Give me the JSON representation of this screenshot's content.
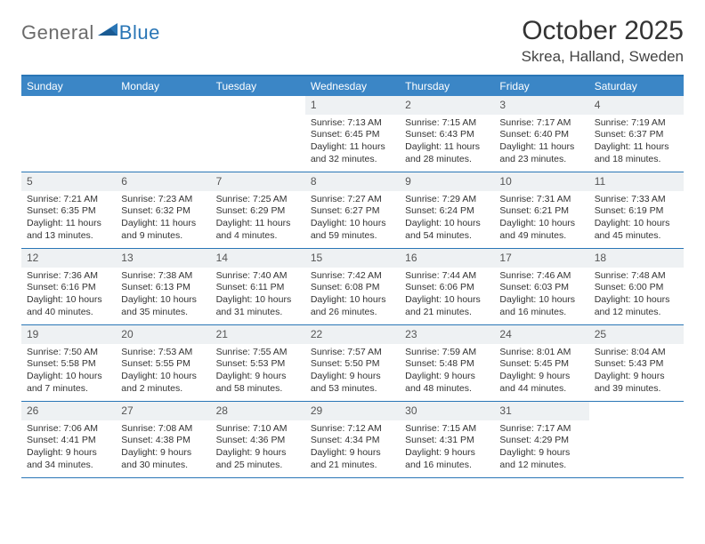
{
  "logo": {
    "general": "General",
    "blue": "Blue"
  },
  "header": {
    "month": "October 2025",
    "location": "Skrea, Halland, Sweden"
  },
  "style": {
    "header_bg": "#3b86c6",
    "border_color": "#2a76b6",
    "daynum_bg": "#eef1f3",
    "text_color": "#333333",
    "page_bg": "#ffffff",
    "month_fontsize": 30,
    "location_fontsize": 17,
    "dayhead_fontsize": 12,
    "cell_fontsize": 10.5
  },
  "dayNames": [
    "Sunday",
    "Monday",
    "Tuesday",
    "Wednesday",
    "Thursday",
    "Friday",
    "Saturday"
  ],
  "leadingBlanks": 3,
  "days": [
    {
      "n": "1",
      "sunrise": "Sunrise: 7:13 AM",
      "sunset": "Sunset: 6:45 PM",
      "daylight": "Daylight: 11 hours and 32 minutes."
    },
    {
      "n": "2",
      "sunrise": "Sunrise: 7:15 AM",
      "sunset": "Sunset: 6:43 PM",
      "daylight": "Daylight: 11 hours and 28 minutes."
    },
    {
      "n": "3",
      "sunrise": "Sunrise: 7:17 AM",
      "sunset": "Sunset: 6:40 PM",
      "daylight": "Daylight: 11 hours and 23 minutes."
    },
    {
      "n": "4",
      "sunrise": "Sunrise: 7:19 AM",
      "sunset": "Sunset: 6:37 PM",
      "daylight": "Daylight: 11 hours and 18 minutes."
    },
    {
      "n": "5",
      "sunrise": "Sunrise: 7:21 AM",
      "sunset": "Sunset: 6:35 PM",
      "daylight": "Daylight: 11 hours and 13 minutes."
    },
    {
      "n": "6",
      "sunrise": "Sunrise: 7:23 AM",
      "sunset": "Sunset: 6:32 PM",
      "daylight": "Daylight: 11 hours and 9 minutes."
    },
    {
      "n": "7",
      "sunrise": "Sunrise: 7:25 AM",
      "sunset": "Sunset: 6:29 PM",
      "daylight": "Daylight: 11 hours and 4 minutes."
    },
    {
      "n": "8",
      "sunrise": "Sunrise: 7:27 AM",
      "sunset": "Sunset: 6:27 PM",
      "daylight": "Daylight: 10 hours and 59 minutes."
    },
    {
      "n": "9",
      "sunrise": "Sunrise: 7:29 AM",
      "sunset": "Sunset: 6:24 PM",
      "daylight": "Daylight: 10 hours and 54 minutes."
    },
    {
      "n": "10",
      "sunrise": "Sunrise: 7:31 AM",
      "sunset": "Sunset: 6:21 PM",
      "daylight": "Daylight: 10 hours and 49 minutes."
    },
    {
      "n": "11",
      "sunrise": "Sunrise: 7:33 AM",
      "sunset": "Sunset: 6:19 PM",
      "daylight": "Daylight: 10 hours and 45 minutes."
    },
    {
      "n": "12",
      "sunrise": "Sunrise: 7:36 AM",
      "sunset": "Sunset: 6:16 PM",
      "daylight": "Daylight: 10 hours and 40 minutes."
    },
    {
      "n": "13",
      "sunrise": "Sunrise: 7:38 AM",
      "sunset": "Sunset: 6:13 PM",
      "daylight": "Daylight: 10 hours and 35 minutes."
    },
    {
      "n": "14",
      "sunrise": "Sunrise: 7:40 AM",
      "sunset": "Sunset: 6:11 PM",
      "daylight": "Daylight: 10 hours and 31 minutes."
    },
    {
      "n": "15",
      "sunrise": "Sunrise: 7:42 AM",
      "sunset": "Sunset: 6:08 PM",
      "daylight": "Daylight: 10 hours and 26 minutes."
    },
    {
      "n": "16",
      "sunrise": "Sunrise: 7:44 AM",
      "sunset": "Sunset: 6:06 PM",
      "daylight": "Daylight: 10 hours and 21 minutes."
    },
    {
      "n": "17",
      "sunrise": "Sunrise: 7:46 AM",
      "sunset": "Sunset: 6:03 PM",
      "daylight": "Daylight: 10 hours and 16 minutes."
    },
    {
      "n": "18",
      "sunrise": "Sunrise: 7:48 AM",
      "sunset": "Sunset: 6:00 PM",
      "daylight": "Daylight: 10 hours and 12 minutes."
    },
    {
      "n": "19",
      "sunrise": "Sunrise: 7:50 AM",
      "sunset": "Sunset: 5:58 PM",
      "daylight": "Daylight: 10 hours and 7 minutes."
    },
    {
      "n": "20",
      "sunrise": "Sunrise: 7:53 AM",
      "sunset": "Sunset: 5:55 PM",
      "daylight": "Daylight: 10 hours and 2 minutes."
    },
    {
      "n": "21",
      "sunrise": "Sunrise: 7:55 AM",
      "sunset": "Sunset: 5:53 PM",
      "daylight": "Daylight: 9 hours and 58 minutes."
    },
    {
      "n": "22",
      "sunrise": "Sunrise: 7:57 AM",
      "sunset": "Sunset: 5:50 PM",
      "daylight": "Daylight: 9 hours and 53 minutes."
    },
    {
      "n": "23",
      "sunrise": "Sunrise: 7:59 AM",
      "sunset": "Sunset: 5:48 PM",
      "daylight": "Daylight: 9 hours and 48 minutes."
    },
    {
      "n": "24",
      "sunrise": "Sunrise: 8:01 AM",
      "sunset": "Sunset: 5:45 PM",
      "daylight": "Daylight: 9 hours and 44 minutes."
    },
    {
      "n": "25",
      "sunrise": "Sunrise: 8:04 AM",
      "sunset": "Sunset: 5:43 PM",
      "daylight": "Daylight: 9 hours and 39 minutes."
    },
    {
      "n": "26",
      "sunrise": "Sunrise: 7:06 AM",
      "sunset": "Sunset: 4:41 PM",
      "daylight": "Daylight: 9 hours and 34 minutes."
    },
    {
      "n": "27",
      "sunrise": "Sunrise: 7:08 AM",
      "sunset": "Sunset: 4:38 PM",
      "daylight": "Daylight: 9 hours and 30 minutes."
    },
    {
      "n": "28",
      "sunrise": "Sunrise: 7:10 AM",
      "sunset": "Sunset: 4:36 PM",
      "daylight": "Daylight: 9 hours and 25 minutes."
    },
    {
      "n": "29",
      "sunrise": "Sunrise: 7:12 AM",
      "sunset": "Sunset: 4:34 PM",
      "daylight": "Daylight: 9 hours and 21 minutes."
    },
    {
      "n": "30",
      "sunrise": "Sunrise: 7:15 AM",
      "sunset": "Sunset: 4:31 PM",
      "daylight": "Daylight: 9 hours and 16 minutes."
    },
    {
      "n": "31",
      "sunrise": "Sunrise: 7:17 AM",
      "sunset": "Sunset: 4:29 PM",
      "daylight": "Daylight: 9 hours and 12 minutes."
    }
  ]
}
